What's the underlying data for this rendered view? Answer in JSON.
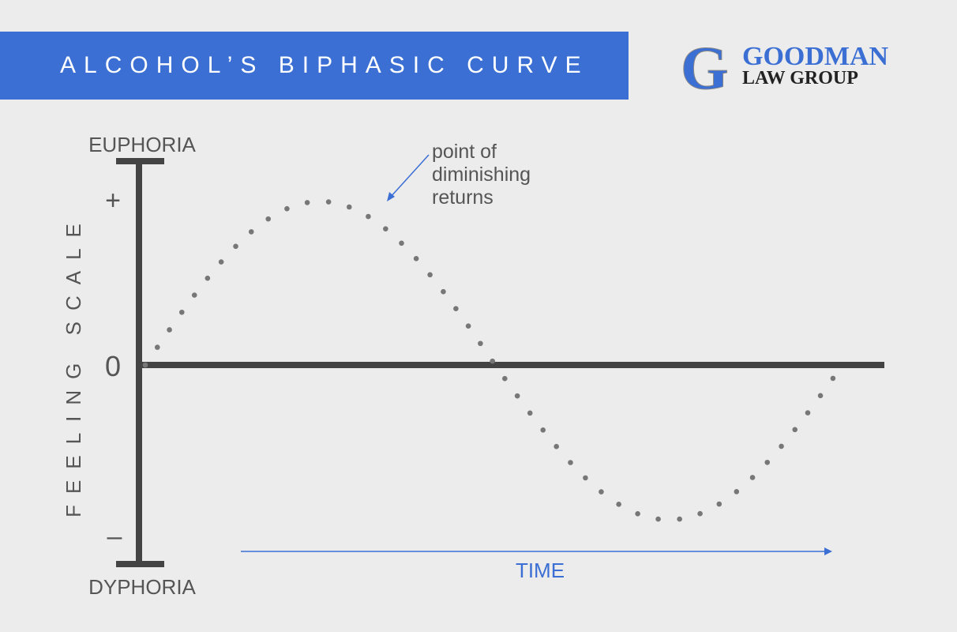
{
  "header": {
    "title": "ALCOHOL’S BIPHASIC CURVE"
  },
  "logo": {
    "initial": "G",
    "name": "GOODMAN",
    "subtitle": "LAW GROUP"
  },
  "diagram": {
    "top_label": "EUPHORIA",
    "bottom_label": "DYPHORIA",
    "plus": "+",
    "zero": "0",
    "minus": "–",
    "y_axis_label": "FEELING SCALE",
    "x_axis_label": "TIME",
    "annotation": [
      "point of",
      "diminishing",
      "returns"
    ]
  }
}
